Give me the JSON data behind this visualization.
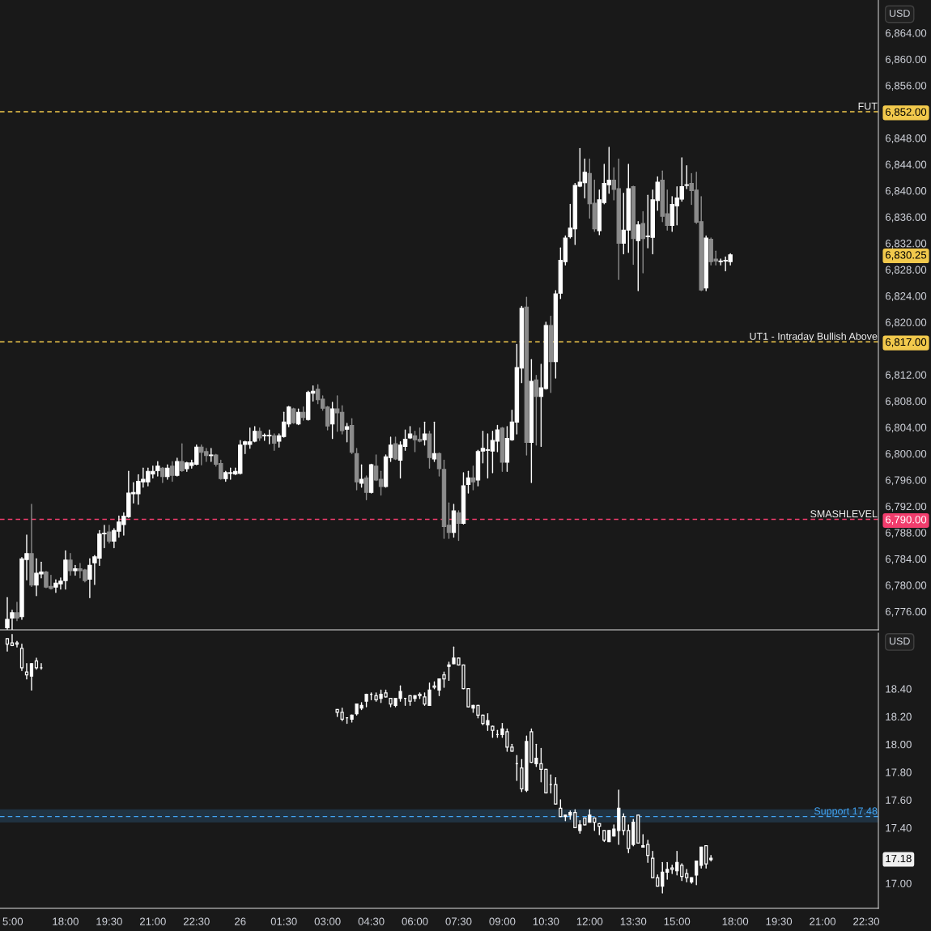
{
  "chart_data": [
    {
      "type": "candlestick",
      "tick_labels": "y",
      "annotations": [
        "USD"
      ],
      "categories": [
        null,
        null,
        null,
        null,
        null,
        null,
        null,
        null,
        null,
        null,
        null,
        null,
        null,
        null,
        null,
        null,
        null,
        null,
        null,
        null,
        null,
        null,
        null,
        null,
        null,
        null,
        null,
        null,
        null,
        null,
        null,
        null,
        null,
        null,
        null,
        null,
        null,
        null,
        null,
        null,
        null,
        null,
        null,
        null,
        null,
        null,
        null,
        null,
        null,
        null,
        null,
        null,
        null,
        null,
        null,
        null,
        null,
        null,
        null,
        null,
        null,
        null,
        null,
        null,
        null,
        null,
        null,
        null,
        null,
        null,
        null,
        null,
        null,
        null,
        null,
        null,
        null,
        null,
        null,
        null,
        null,
        null,
        null,
        null,
        null,
        null,
        null,
        null,
        null,
        null,
        null,
        null,
        null,
        null,
        null,
        null,
        null,
        null,
        null,
        null,
        null,
        null,
        null,
        null,
        null,
        null,
        null,
        null,
        null,
        null,
        null,
        null,
        null,
        null,
        null,
        null,
        null,
        null,
        null,
        null,
        null,
        null,
        null,
        null,
        null,
        null,
        null,
        null,
        null,
        null,
        null,
        null,
        null,
        null,
        null,
        null,
        null,
        null,
        null,
        null,
        null,
        null,
        null,
        null,
        null,
        null,
        null,
        null,
        null,
        null,
        null,
        null,
        null,
        null,
        null,
        null,
        null,
        null,
        null,
        null,
        null,
        null,
        null,
        null,
        null,
        null,
        null,
        null,
        null,
        null,
        null,
        null,
        null,
        null,
        null,
        null,
        null,
        null,
        null,
        null,
        null
      ],
      "ylim": [
        6773.2,
        6869.0
      ],
      "yticks": [
        {
          "value": 6864,
          "label": "6,864.00"
        },
        {
          "value": 6860,
          "label": "6,860.00"
        },
        {
          "value": 6856,
          "label": "6,856.00"
        },
        {
          "value": 6852,
          "label": "6,852.00"
        },
        {
          "value": 6848,
          "label": "6,848.00"
        },
        {
          "value": 6844,
          "label": "6,844.00"
        },
        {
          "value": 6840,
          "label": "6,840.00"
        },
        {
          "value": 6836,
          "label": "6,836.00"
        },
        {
          "value": 6832,
          "label": "6,832.00"
        },
        {
          "value": 6830.25,
          "label": "6,830.25"
        },
        {
          "value": 6828,
          "label": "6,828.00"
        },
        {
          "value": 6824,
          "label": "6,824.00"
        },
        {
          "value": 6820,
          "label": "6,820.00"
        },
        {
          "value": 6817,
          "label": "6,817.00"
        },
        {
          "value": 6812,
          "label": "6,812.00"
        },
        {
          "value": 6808,
          "label": "6,808.00"
        },
        {
          "value": 6804,
          "label": "6,804.00"
        },
        {
          "value": 6800,
          "label": "6,800.00"
        },
        {
          "value": 6796,
          "label": "6,796.00"
        },
        {
          "value": 6792,
          "label": "6,792.00"
        },
        {
          "value": 6790,
          "label": "6,790.00"
        },
        {
          "value": 6788,
          "label": "6,788.00"
        },
        {
          "value": 6784,
          "label": "6,784.00"
        },
        {
          "value": 6780,
          "label": "6,780.00"
        },
        {
          "value": 6776,
          "label": "6,776.00"
        }
      ],
      "ref_lines": [
        {
          "axis": "y",
          "value": 6852,
          "label": "FUT",
          "color": "#f2c94c",
          "line_style": "dashed"
        },
        {
          "axis": "y",
          "value": 6817,
          "label": "UT1 - Intraday Bullish Above",
          "color": "#f2c94c",
          "line_style": "dashed"
        },
        {
          "axis": "y",
          "value": 6790,
          "label": "SMASHLEVEL",
          "color": "#f23d6d",
          "line_style": "dashed"
        }
      ],
      "colors": [
        null,
        "#ffffff",
        "#ffffff",
        "#8c8c8c",
        "#ffffff",
        "#ffffff",
        "#8c8c8c",
        "#ffffff",
        "#ffffff",
        "#8c8c8c",
        "#8c8c8c",
        "#ffffff",
        "#ffffff",
        "#ffffff",
        "#8c8c8c",
        "#ffffff",
        "#8c8c8c",
        "#8c8c8c",
        "#ffffff",
        "#ffffff",
        "#ffffff",
        "#ffffff",
        "#8c8c8c",
        "#ffffff",
        "#ffffff",
        "#ffffff",
        "#ffffff",
        "#ffffff",
        "#ffffff",
        "#ffffff",
        "#ffffff",
        "#ffffff",
        "#ffffff",
        "#8c8c8c",
        "#ffffff",
        "#8c8c8c",
        "#ffffff",
        "#8c8c8c",
        "#ffffff",
        "#ffffff",
        "#ffffff",
        "#8c8c8c",
        "#8c8c8c",
        "#ffffff",
        "#8c8c8c",
        "#8c8c8c",
        "#ffffff",
        "#ffffff",
        "#ffffff",
        "#ffffff",
        "#ffffff",
        "#ffffff",
        "#ffffff",
        "#8c8c8c",
        "#ffffff",
        "#ffffff",
        "#8c8c8c",
        "#ffffff",
        "#ffffff",
        "#ffffff",
        "#8c8c8c",
        "#ffffff",
        "#8c8c8c",
        "#ffffff",
        "#ffffff",
        "#8c8c8c",
        "#8c8c8c",
        "#8c8c8c",
        "#ffffff",
        "#8c8c8c",
        "#8c8c8c",
        "#ffffff",
        "#8c8c8c",
        "#8c8c8c",
        "#ffffff",
        "#8c8c8c",
        "#ffffff",
        "#8c8c8c",
        "#8c8c8c",
        "#ffffff",
        "#ffffff",
        "#8c8c8c",
        "#ffffff",
        "#ffffff",
        "#ffffff",
        "#8c8c8c",
        "#8c8c8c",
        "#ffffff",
        "#8c8c8c",
        "#ffffff",
        "#8c8c8c",
        "#8c8c8c",
        "#8c8c8c",
        "#ffffff",
        "#8c8c8c",
        "#ffffff",
        "#ffffff",
        "#8c8c8c",
        "#ffffff",
        "#ffffff",
        "#ffffff",
        "#ffffff",
        "#ffffff",
        "#8c8c8c",
        "#ffffff",
        "#ffffff",
        "#ffffff",
        "#ffffff",
        "#8c8c8c",
        "#ffffff",
        "#8c8c8c",
        "#ffffff",
        "#ffffff",
        "#8c8c8c",
        "#ffffff",
        "#ffffff",
        "#ffffff",
        "#ffffff",
        "#ffffff",
        "#ffffff",
        "#ffffff",
        "#8c8c8c",
        "#8c8c8c",
        "#ffffff",
        "#ffffff",
        "#ffffff",
        "#8c8c8c",
        "#8c8c8c",
        "#ffffff",
        "#ffffff",
        "#8c8c8c",
        "#ffffff",
        "#8c8c8c",
        "#ffffff",
        "#ffffff",
        "#ffffff",
        "#8c8c8c",
        "#8c8c8c",
        "#ffffff",
        "#ffffff",
        "#ffffff",
        "#ffffff",
        "#8c8c8c",
        "#8c8c8c",
        "#8c8c8c",
        "#ffffff",
        "#8c8c8c",
        "#8c8c8c",
        "#ffffff",
        "#ffffff",
        "#ffffff",
        null,
        null,
        null,
        null,
        null,
        null,
        null,
        null,
        null,
        null,
        null,
        null,
        null,
        null,
        null,
        null,
        null,
        null,
        null,
        null,
        null,
        null,
        null,
        null,
        null,
        null,
        null,
        null,
        null,
        null
      ],
      "ohlc": [
        null,
        [
          6773.5,
          6778.1,
          6773.3,
          6774.8
        ],
        [
          6775.0,
          6776.2,
          6773.0,
          6775.8
        ],
        [
          6775.8,
          6777.4,
          6774.6,
          6775.0
        ],
        [
          6775.2,
          6784.2,
          6774.8,
          6784.0
        ],
        [
          6783.9,
          6787.6,
          6780.8,
          6784.8
        ],
        [
          6784.8,
          6792.3,
          6779.8,
          6780.0
        ],
        [
          6780.0,
          6784.0,
          6778.4,
          6781.8
        ],
        [
          6781.7,
          6783.5,
          6781.1,
          6782.0
        ],
        [
          6782.0,
          6782.1,
          6779.6,
          6779.7
        ],
        [
          6779.8,
          6781.5,
          6779.4,
          6779.5
        ],
        [
          6779.7,
          6780.8,
          6778.9,
          6780.3
        ],
        [
          6780.2,
          6781.1,
          6779.4,
          6780.6
        ],
        [
          6780.7,
          6785.2,
          6779.4,
          6783.8
        ],
        [
          6783.8,
          6784.8,
          6781.5,
          6782.2
        ],
        [
          6782.2,
          6783.0,
          6781.5,
          6782.5
        ],
        [
          6782.5,
          6783.3,
          6781.1,
          6782.2
        ],
        [
          6782.3,
          6782.4,
          6780.5,
          6780.7
        ],
        [
          6780.9,
          6784.0,
          6778.1,
          6783.0
        ],
        [
          6783.4,
          6784.5,
          6780.1,
          6784.3
        ],
        [
          6784.1,
          6788.3,
          6783.0,
          6787.8
        ],
        [
          6787.8,
          6789.1,
          6785.7,
          6787.9
        ],
        [
          6788.1,
          6789.1,
          6786.4,
          6786.7
        ],
        [
          6786.7,
          6788.6,
          6785.7,
          6788.3
        ],
        [
          6788.2,
          6790.5,
          6787.3,
          6789.6
        ],
        [
          6789.2,
          6791.0,
          6787.6,
          6790.5
        ],
        [
          6790.4,
          6797.3,
          6790.3,
          6794.0
        ],
        [
          6793.9,
          6795.6,
          6792.5,
          6794.1
        ],
        [
          6793.9,
          6796.8,
          6792.3,
          6795.8
        ],
        [
          6795.7,
          6797.8,
          6794.9,
          6796.1
        ],
        [
          6795.7,
          6797.8,
          6795.1,
          6797.3
        ],
        [
          6796.9,
          6798.1,
          6796.3,
          6797.3
        ],
        [
          6797.4,
          6798.8,
          6796.6,
          6798.1
        ],
        [
          6797.8,
          6797.9,
          6795.6,
          6796.5
        ],
        [
          6796.5,
          6798.3,
          6796.1,
          6797.8
        ],
        [
          6798.1,
          6798.8,
          6795.8,
          6796.7
        ],
        [
          6796.7,
          6799.3,
          6796.6,
          6798.8
        ],
        [
          6798.8,
          6801.5,
          6797.3,
          6797.4
        ],
        [
          6797.7,
          6798.7,
          6797.3,
          6798.6
        ],
        [
          6798.2,
          6799.0,
          6797.8,
          6798.6
        ],
        [
          6798.4,
          6801.3,
          6798.3,
          6801.0
        ],
        [
          6801.0,
          6801.3,
          6798.3,
          6800.2
        ],
        [
          6800.3,
          6800.8,
          6798.8,
          6799.7
        ],
        [
          6799.7,
          6800.8,
          6798.8,
          6799.8
        ],
        [
          6799.8,
          6799.9,
          6798.1,
          6798.4
        ],
        [
          6798.5,
          6799.0,
          6796.1,
          6796.2
        ],
        [
          6796.2,
          6797.3,
          6795.8,
          6797.1
        ],
        [
          6797.0,
          6797.8,
          6796.1,
          6797.1
        ],
        [
          6796.9,
          6797.8,
          6796.8,
          6797.3
        ],
        [
          6797.0,
          6802.0,
          6796.9,
          6801.3
        ],
        [
          6801.4,
          6801.9,
          6800.0,
          6801.8
        ],
        [
          6801.4,
          6803.9,
          6800.8,
          6801.8
        ],
        [
          6801.9,
          6804.1,
          6801.8,
          6803.4
        ],
        [
          6803.4,
          6803.9,
          6802.0,
          6802.4
        ],
        [
          6802.7,
          6803.0,
          6802.0,
          6802.8
        ],
        [
          6802.7,
          6803.6,
          6801.5,
          6802.8
        ],
        [
          6802.7,
          6803.0,
          6800.5,
          6801.6
        ],
        [
          6801.9,
          6803.0,
          6801.0,
          6802.7
        ],
        [
          6802.6,
          6806.3,
          6802.5,
          6804.8
        ],
        [
          6804.5,
          6807.2,
          6804.1,
          6807.1
        ],
        [
          6806.8,
          6806.9,
          6804.6,
          6804.7
        ],
        [
          6804.5,
          6806.8,
          6804.4,
          6806.3
        ],
        [
          6806.3,
          6807.1,
          6805.1,
          6805.5
        ],
        [
          6805.2,
          6809.5,
          6805.1,
          6809.3
        ],
        [
          6809.2,
          6810.3,
          6808.0,
          6809.5
        ],
        [
          6809.8,
          6810.5,
          6807.6,
          6808.2
        ],
        [
          6808.3,
          6808.8,
          6806.6,
          6806.9
        ],
        [
          6807.1,
          6807.2,
          6803.6,
          6804.2
        ],
        [
          6804.5,
          6807.8,
          6802.3,
          6806.8
        ],
        [
          6806.8,
          6808.8,
          6803.4,
          6806.2
        ],
        [
          6806.3,
          6807.3,
          6803.0,
          6803.5
        ],
        [
          6803.7,
          6804.6,
          6801.8,
          6804.1
        ],
        [
          6804.3,
          6805.3,
          6800.0,
          6800.2
        ],
        [
          6800.0,
          6800.8,
          6794.5,
          6795.7
        ],
        [
          6795.5,
          6798.3,
          6794.9,
          6796.1
        ],
        [
          6796.3,
          6796.6,
          6793.0,
          6794.1
        ],
        [
          6794.1,
          6798.4,
          6794.0,
          6798.3
        ],
        [
          6798.1,
          6799.8,
          6795.9,
          6796.0
        ],
        [
          6796.1,
          6797.3,
          6793.7,
          6795.0
        ],
        [
          6795.0,
          6799.8,
          6794.9,
          6799.5
        ],
        [
          6799.4,
          6802.5,
          6798.8,
          6801.3
        ],
        [
          6801.5,
          6802.5,
          6799.1,
          6799.2
        ],
        [
          6799.0,
          6801.8,
          6796.3,
          6801.3
        ],
        [
          6801.1,
          6803.6,
          6800.5,
          6802.2
        ],
        [
          6802.4,
          6804.1,
          6802.3,
          6803.0
        ],
        [
          6802.7,
          6803.4,
          6800.3,
          6802.1
        ],
        [
          6802.2,
          6803.9,
          6801.8,
          6801.9
        ],
        [
          6802.1,
          6804.8,
          6801.3,
          6803.0
        ],
        [
          6803.0,
          6803.4,
          6797.8,
          6799.4
        ],
        [
          6799.2,
          6804.8,
          6798.8,
          6800.0
        ],
        [
          6800.0,
          6800.1,
          6796.6,
          6797.7
        ],
        [
          6797.6,
          6799.0,
          6787.1,
          6788.9
        ],
        [
          6789.1,
          6792.5,
          6787.1,
          6788.0
        ],
        [
          6788.0,
          6792.3,
          6787.3,
          6791.3
        ],
        [
          6791.0,
          6791.3,
          6786.8,
          6789.4
        ],
        [
          6789.4,
          6797.1,
          6789.3,
          6795.1
        ],
        [
          6795.3,
          6797.3,
          6794.0,
          6796.3
        ],
        [
          6796.3,
          6798.1,
          6794.5,
          6795.7
        ],
        [
          6796.0,
          6800.5,
          6795.1,
          6800.3
        ],
        [
          6800.4,
          6803.4,
          6798.6,
          6800.8
        ],
        [
          6800.5,
          6803.0,
          6796.3,
          6800.6
        ],
        [
          6800.4,
          6803.4,
          6797.1,
          6802.0
        ],
        [
          6801.9,
          6804.3,
          6800.3,
          6803.6
        ],
        [
          6803.9,
          6804.0,
          6797.3,
          6798.7
        ],
        [
          6798.7,
          6804.1,
          6797.3,
          6802.3
        ],
        [
          6802.1,
          6806.6,
          6802.0,
          6804.8
        ],
        [
          6804.8,
          6816.6,
          6803.0,
          6813.1
        ],
        [
          6813.0,
          6822.4,
          6810.8,
          6822.1
        ],
        [
          6822.3,
          6823.8,
          6799.8,
          6801.7
        ],
        [
          6801.7,
          6814.3,
          6795.6,
          6811.0
        ],
        [
          6811.2,
          6811.9,
          6801.3,
          6808.7
        ],
        [
          6808.7,
          6813.6,
          6801.1,
          6810.0
        ],
        [
          6809.9,
          6820.0,
          6809.8,
          6819.5
        ],
        [
          6819.5,
          6820.9,
          6809.3,
          6814.0
        ],
        [
          6814.0,
          6824.8,
          6811.5,
          6824.3
        ],
        [
          6824.4,
          6831.3,
          6823.6,
          6829.4
        ],
        [
          6829.2,
          6833.1,
          6828.7,
          6832.8
        ],
        [
          6833.0,
          6837.9,
          6832.8,
          6834.3
        ],
        [
          6834.2,
          6841.1,
          6831.8,
          6840.8
        ],
        [
          6840.7,
          6846.4,
          6840.6,
          6841.3
        ],
        [
          6841.2,
          6844.8,
          6838.9,
          6842.8
        ],
        [
          6842.6,
          6844.8,
          6835.8,
          6838.0
        ],
        [
          6838.1,
          6841.6,
          6833.8,
          6834.2
        ],
        [
          6833.9,
          6840.1,
          6833.3,
          6838.6
        ],
        [
          6838.2,
          6844.0,
          6838.0,
          6841.1
        ],
        [
          6840.9,
          6846.6,
          6839.6,
          6841.6
        ],
        [
          6841.6,
          6843.5,
          6838.6,
          6840.2
        ],
        [
          6840.3,
          6844.8,
          6826.5,
          6832.0
        ],
        [
          6832.0,
          6839.6,
          6830.4,
          6834.0
        ],
        [
          6834.0,
          6844.0,
          6830.6,
          6840.3
        ],
        [
          6840.6,
          6840.7,
          6828.8,
          6832.7
        ],
        [
          6832.4,
          6835.3,
          6824.8,
          6834.8
        ],
        [
          6835.0,
          6836.8,
          6827.5,
          6832.7
        ],
        [
          6833.0,
          6839.3,
          6831.3,
          6833.1
        ],
        [
          6832.9,
          6840.1,
          6830.4,
          6838.6
        ],
        [
          6838.5,
          6842.1,
          6837.0,
          6841.3
        ],
        [
          6841.6,
          6843.0,
          6835.3,
          6836.1
        ],
        [
          6836.5,
          6840.1,
          6834.0,
          6834.7
        ],
        [
          6834.7,
          6839.1,
          6833.8,
          6837.9
        ],
        [
          6837.7,
          6840.6,
          6834.8,
          6838.9
        ],
        [
          6838.7,
          6845.0,
          6838.4,
          6840.6
        ],
        [
          6840.8,
          6843.8,
          6840.3,
          6840.9
        ],
        [
          6841.1,
          6842.6,
          6837.9,
          6840.0
        ],
        [
          6840.1,
          6842.8,
          6835.0,
          6835.2
        ],
        [
          6835.3,
          6839.1,
          6824.8,
          6824.9
        ],
        [
          6825.2,
          6833.1,
          6824.8,
          6832.8
        ],
        [
          6832.6,
          6832.8,
          6828.7,
          6829.2
        ],
        [
          6829.6,
          6830.8,
          6828.7,
          6829.3
        ],
        [
          6829.2,
          6829.6,
          6828.7,
          6829.3
        ],
        [
          6829.3,
          6829.9,
          6827.8,
          6829.4
        ],
        [
          6829.2,
          6830.4,
          6828.7,
          6830.25
        ],
        null,
        null,
        null,
        null,
        null,
        null,
        null,
        null,
        null,
        null,
        null,
        null,
        null,
        null,
        null,
        null,
        null,
        null,
        null,
        null,
        null,
        null,
        null,
        null,
        null,
        null,
        null,
        null,
        null,
        null
      ]
    },
    {
      "type": "candlestick",
      "annotations": [
        "USD"
      ],
      "categories": [
        null,
        "5:00",
        null,
        null,
        null,
        null,
        null,
        null,
        null,
        null,
        null,
        null,
        null,
        "18:00",
        null,
        null,
        null,
        null,
        null,
        null,
        null,
        null,
        "19:30",
        null,
        null,
        null,
        null,
        null,
        null,
        null,
        null,
        "21:00",
        null,
        null,
        null,
        null,
        null,
        null,
        null,
        null,
        "22:30",
        null,
        null,
        null,
        null,
        null,
        null,
        null,
        null,
        "26",
        null,
        null,
        null,
        null,
        null,
        null,
        null,
        null,
        "01:30",
        null,
        null,
        null,
        null,
        null,
        null,
        null,
        null,
        "03:00",
        null,
        null,
        null,
        null,
        null,
        null,
        null,
        null,
        "04:30",
        null,
        null,
        null,
        null,
        null,
        null,
        null,
        null,
        "06:00",
        null,
        null,
        null,
        null,
        null,
        null,
        null,
        null,
        "07:30",
        null,
        null,
        null,
        null,
        null,
        null,
        null,
        null,
        "09:00",
        null,
        null,
        null,
        null,
        null,
        null,
        null,
        null,
        "10:30",
        null,
        null,
        null,
        null,
        null,
        null,
        null,
        null,
        "12:00",
        null,
        null,
        null,
        null,
        null,
        null,
        null,
        null,
        "13:30",
        null,
        null,
        null,
        null,
        null,
        null,
        null,
        null,
        "15:00",
        null,
        null,
        null,
        null,
        null,
        null,
        null,
        null,
        null,
        null,
        null,
        "18:00",
        null,
        null,
        null,
        null,
        null,
        null,
        null,
        null,
        "19:30",
        null,
        null,
        null,
        null,
        null,
        null,
        null,
        null,
        "21:00",
        null,
        null,
        null,
        null,
        null,
        null,
        null,
        null,
        "22:30",
        null,
        null
      ],
      "ylim": [
        16.82,
        18.8
      ],
      "yticks": [
        {
          "value": 18.4,
          "label": "18.40"
        },
        {
          "value": 18.2,
          "label": "18.20"
        },
        {
          "value": 18.0,
          "label": "18.00"
        },
        {
          "value": 17.8,
          "label": "17.80"
        },
        {
          "value": 17.6,
          "label": "17.60"
        },
        {
          "value": 17.4,
          "label": "17.40"
        },
        {
          "value": 17.18,
          "label": "17.18"
        },
        {
          "value": 17.0,
          "label": "17.00"
        }
      ],
      "ref_lines": [
        {
          "axis": "y",
          "value": 17.48,
          "label": "Support 17.48",
          "color": "#42a5f5",
          "line_style": "dashed"
        }
      ],
      "bands": [
        {
          "axis": "y",
          "from": 17.44,
          "to": 17.53,
          "color": "#42a5f5"
        }
      ],
      "ohlc": [
        null,
        [
          18.76,
          18.76,
          18.67,
          18.72
        ],
        [
          18.73,
          18.79,
          18.71,
          18.71
        ],
        [
          18.73,
          18.74,
          18.7,
          18.72
        ],
        [
          18.69,
          18.72,
          18.53,
          18.55
        ],
        [
          18.52,
          18.58,
          18.47,
          18.5
        ],
        [
          18.49,
          18.58,
          18.39,
          18.58
        ],
        [
          18.6,
          18.62,
          18.54,
          18.55
        ],
        [
          18.55,
          18.58,
          18.54,
          18.55
        ],
        null,
        null,
        null,
        null,
        null,
        null,
        null,
        null,
        null,
        null,
        null,
        null,
        null,
        null,
        null,
        null,
        null,
        null,
        null,
        null,
        null,
        null,
        null,
        null,
        null,
        null,
        null,
        null,
        null,
        null,
        null,
        null,
        null,
        null,
        null,
        null,
        null,
        null,
        null,
        null,
        null,
        null,
        null,
        null,
        null,
        null,
        null,
        null,
        null,
        null,
        null,
        null,
        null,
        null,
        null,
        null,
        null,
        null,
        null,
        null,
        [
          18.25,
          18.25,
          18.2,
          18.23
        ],
        [
          18.23,
          18.26,
          18.17,
          18.18
        ],
        [
          18.19,
          18.19,
          18.15,
          18.19
        ],
        [
          18.18,
          18.21,
          18.16,
          18.21
        ],
        [
          18.22,
          18.29,
          18.21,
          18.29
        ],
        [
          18.26,
          18.3,
          18.25,
          18.28
        ],
        [
          18.31,
          18.36,
          18.27,
          18.36
        ],
        [
          18.36,
          18.37,
          18.32,
          18.36
        ],
        [
          18.35,
          18.37,
          18.31,
          18.32
        ],
        [
          18.33,
          18.39,
          18.3,
          18.36
        ],
        [
          18.37,
          18.39,
          18.34,
          18.34
        ],
        [
          18.33,
          18.33,
          18.27,
          18.29
        ],
        [
          18.28,
          18.33,
          18.27,
          18.33
        ],
        [
          18.33,
          18.42,
          18.31,
          18.38
        ],
        [
          18.33,
          18.33,
          18.28,
          18.33
        ],
        [
          18.35,
          18.35,
          18.28,
          18.31
        ],
        [
          18.33,
          18.35,
          18.31,
          18.35
        ],
        [
          18.36,
          18.37,
          18.33,
          18.35
        ],
        [
          18.34,
          18.37,
          18.28,
          18.29
        ],
        [
          18.28,
          18.44,
          18.28,
          18.39
        ],
        [
          18.42,
          18.45,
          18.4,
          18.41
        ],
        [
          18.39,
          18.47,
          18.35,
          18.47
        ],
        [
          18.5,
          18.52,
          18.41,
          18.47
        ],
        [
          18.56,
          18.59,
          18.46,
          18.57
        ],
        [
          18.58,
          18.7,
          18.58,
          18.62
        ],
        [
          18.62,
          18.62,
          18.57,
          18.57
        ],
        [
          18.57,
          18.57,
          18.4,
          18.4
        ],
        [
          18.4,
          18.4,
          18.27,
          18.27
        ],
        [
          18.26,
          18.28,
          18.23,
          18.28
        ],
        [
          18.28,
          18.28,
          18.19,
          18.21
        ],
        [
          18.21,
          18.21,
          18.14,
          18.15
        ],
        [
          18.14,
          18.22,
          18.1,
          18.17
        ],
        [
          18.13,
          18.13,
          18.05,
          18.1
        ],
        [
          18.07,
          18.1,
          18.05,
          18.07
        ],
        [
          18.07,
          18.15,
          18.05,
          18.11
        ],
        [
          18.09,
          18.11,
          17.95,
          17.98
        ],
        [
          17.98,
          18.0,
          17.95,
          17.95
        ],
        [
          17.86,
          17.92,
          17.74,
          17.86
        ],
        [
          17.83,
          17.89,
          17.66,
          17.68
        ],
        [
          17.67,
          18.06,
          17.66,
          18.02
        ],
        [
          18.09,
          18.11,
          17.87,
          17.87
        ],
        [
          17.86,
          18.0,
          17.84,
          17.9
        ],
        [
          17.86,
          17.97,
          17.73,
          17.82
        ],
        [
          17.82,
          17.82,
          17.65,
          17.65
        ],
        [
          17.71,
          17.78,
          17.65,
          17.71
        ],
        [
          17.71,
          17.76,
          17.57,
          17.57
        ],
        [
          17.54,
          17.6,
          17.48,
          17.48
        ],
        [
          17.48,
          17.49,
          17.45,
          17.49
        ],
        [
          17.49,
          17.52,
          17.46,
          17.51
        ],
        [
          17.51,
          17.53,
          17.4,
          17.4
        ],
        [
          17.38,
          17.45,
          17.36,
          17.42
        ],
        [
          17.47,
          17.47,
          17.42,
          17.42
        ],
        [
          17.44,
          17.53,
          17.44,
          17.49
        ],
        [
          17.47,
          17.47,
          17.38,
          17.44
        ],
        [
          17.43,
          17.43,
          17.35,
          17.41
        ],
        [
          17.38,
          17.38,
          17.3,
          17.31
        ],
        [
          17.3,
          17.38,
          17.3,
          17.38
        ],
        [
          17.34,
          17.42,
          17.34,
          17.39
        ],
        [
          17.38,
          17.67,
          17.28,
          17.54
        ],
        [
          17.48,
          17.5,
          17.35,
          17.38
        ],
        [
          17.38,
          17.42,
          17.22,
          17.25
        ],
        [
          17.28,
          17.46,
          17.27,
          17.44
        ],
        [
          17.49,
          17.49,
          17.29,
          17.29
        ],
        [
          17.26,
          17.35,
          17.26,
          17.27
        ],
        [
          17.28,
          17.31,
          17.15,
          17.2
        ],
        [
          17.18,
          17.23,
          17.04,
          17.04
        ],
        [
          17.04,
          17.06,
          16.98,
          16.98
        ],
        [
          16.98,
          17.15,
          16.93,
          17.08
        ],
        [
          17.08,
          17.15,
          17.03,
          17.1
        ],
        [
          17.11,
          17.13,
          17.07,
          17.1
        ],
        [
          17.09,
          17.23,
          17.06,
          17.15
        ],
        [
          17.13,
          17.14,
          17.02,
          17.05
        ],
        [
          17.07,
          17.1,
          17.01,
          17.04
        ],
        [
          17.01,
          17.04,
          17.0,
          17.04
        ],
        [
          17.06,
          17.16,
          16.99,
          17.16
        ],
        [
          17.13,
          17.26,
          17.11,
          17.26
        ],
        [
          17.27,
          17.27,
          17.11,
          17.14
        ],
        [
          17.17,
          17.2,
          17.16,
          17.18
        ],
        null,
        null,
        null,
        null,
        null,
        null,
        null,
        null,
        null,
        null,
        null,
        null,
        null,
        null,
        null,
        null,
        null,
        null,
        null,
        null,
        null,
        null,
        null,
        null,
        null,
        null,
        null,
        null,
        null,
        null,
        null,
        null,
        null,
        null
      ]
    }
  ]
}
